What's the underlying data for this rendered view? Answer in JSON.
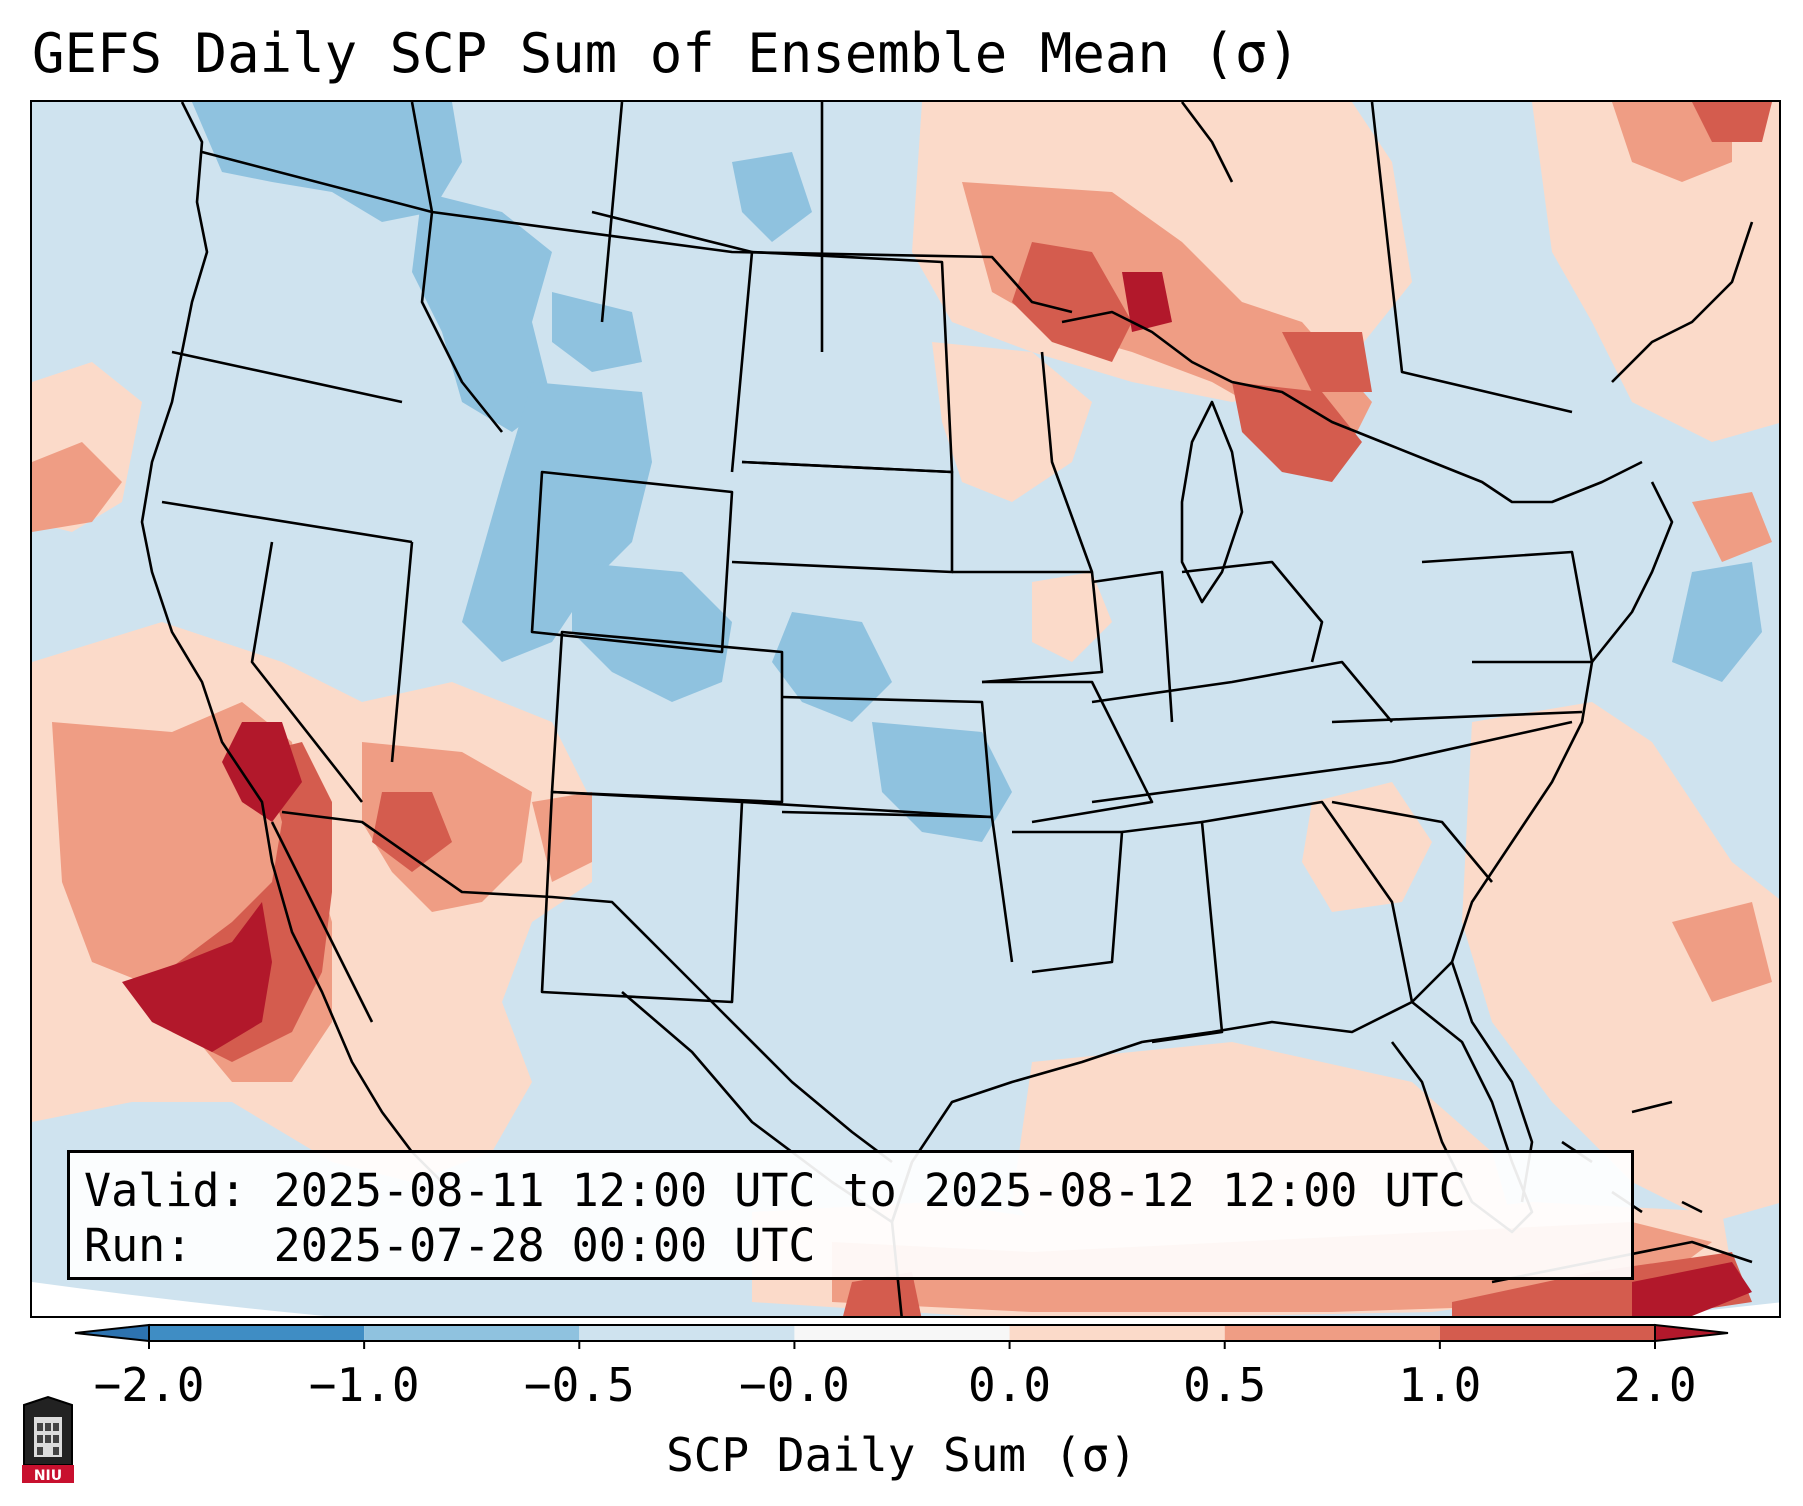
{
  "title": "GEFS Daily SCP Sum of Ensemble Mean (σ)",
  "info": {
    "valid_label": "Valid:",
    "valid_value": "2025-08-11 12:00 UTC to 2025-08-12 12:00 UTC",
    "run_label": "Run:",
    "run_value": "2025-07-28 00:00 UTC"
  },
  "colorbar": {
    "label": "SCP Daily Sum (σ)",
    "ticks": [
      "−2.0",
      "−1.0",
      "−0.5",
      "−0.0",
      "0.0",
      "0.5",
      "1.0",
      "2.0"
    ],
    "bins": [
      {
        "color": "#3f8dc4"
      },
      {
        "color": "#8fc2df"
      },
      {
        "color": "#cfe3ef"
      },
      {
        "color": "#f7f7f7"
      },
      {
        "color": "#fbdac9"
      },
      {
        "color": "#ef9d84"
      },
      {
        "color": "#d45c4e"
      }
    ],
    "extend_low_color": "#2d73b0",
    "extend_high_color": "#b2182b"
  },
  "map": {
    "background_color": "#cfe3ef",
    "ocean_outside_color": "#ffffff",
    "border_color": "#000000"
  },
  "logo": {
    "text": "NIU"
  }
}
